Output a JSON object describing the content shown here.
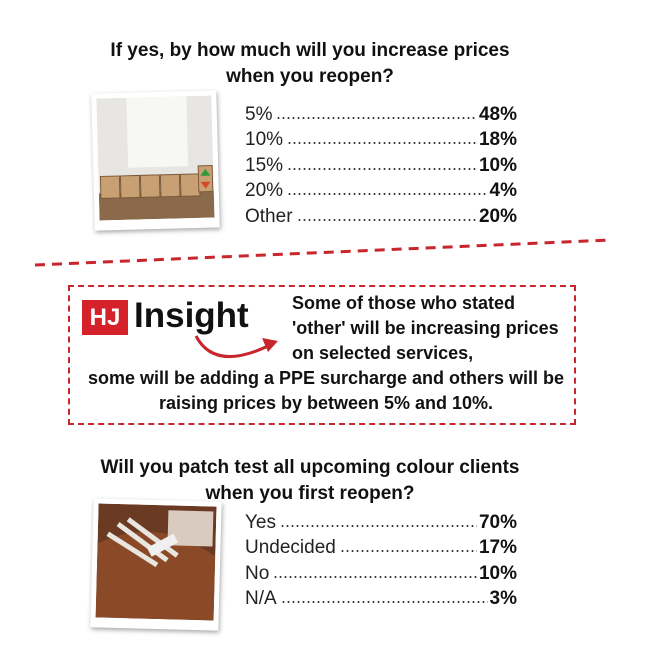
{
  "surveys": [
    {
      "question": "If yes, by how much will you increase prices when you reopen?",
      "items": [
        {
          "label": "5%",
          "value": "48%"
        },
        {
          "label": "10%",
          "value": "18%"
        },
        {
          "label": "15%",
          "value": "10%"
        },
        {
          "label": "20%",
          "value": "4%"
        },
        {
          "label": "Other",
          "value": "20%"
        }
      ]
    },
    {
      "question": "Will you patch test all upcoming colour clients when you first reopen?",
      "items": [
        {
          "label": "Yes",
          "value": "70%"
        },
        {
          "label": "Undecided",
          "value": "17%"
        },
        {
          "label": "No",
          "value": "10%"
        },
        {
          "label": "N/A",
          "value": "3%"
        }
      ]
    }
  ],
  "insight": {
    "logo_mark": "HJ",
    "logo_word": "Insight",
    "text": "Some of those who stated 'other' will be increasing prices on selected services, some will be adding a PPE surcharge and others will be raising prices by between 5% and 10%."
  }
}
